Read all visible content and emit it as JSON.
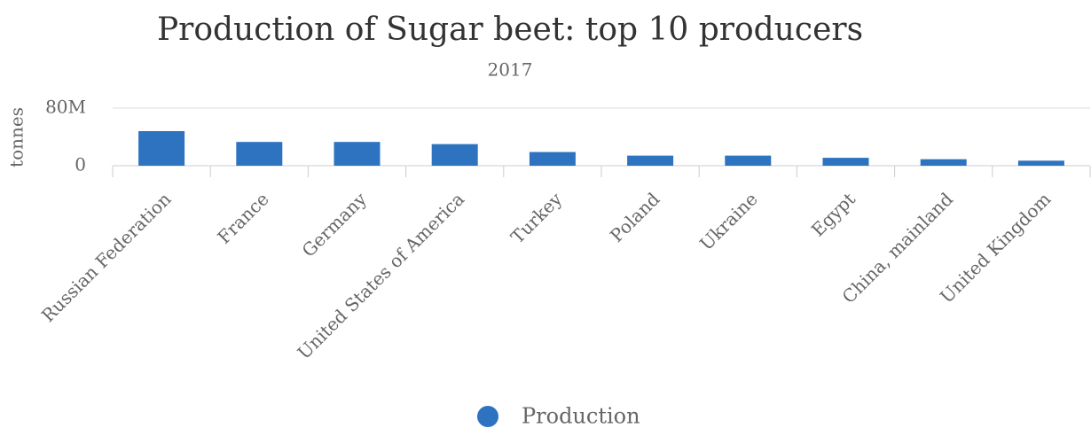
{
  "chart_data": {
    "type": "bar",
    "title": "Production of Sugar beet: top 10 producers",
    "subtitle": "2017",
    "y_label": "tonnes",
    "categories": [
      "Russian Federation",
      "France",
      "Germany",
      "United States of America",
      "Turkey",
      "Poland",
      "Ukraine",
      "Egypt",
      "China, mainland",
      "United Kingdom"
    ],
    "series": [
      {
        "name": "Production",
        "color": "#2e73bf",
        "values": [
          48000000,
          33000000,
          33000000,
          30000000,
          19000000,
          14000000,
          14000000,
          11000000,
          9000000,
          7000000
        ]
      }
    ],
    "ylim": [
      0,
      80000000
    ],
    "yticks": [
      0,
      {
        "value": 80000000,
        "label": "80M"
      }
    ],
    "grid": true,
    "legend": "bottom"
  }
}
